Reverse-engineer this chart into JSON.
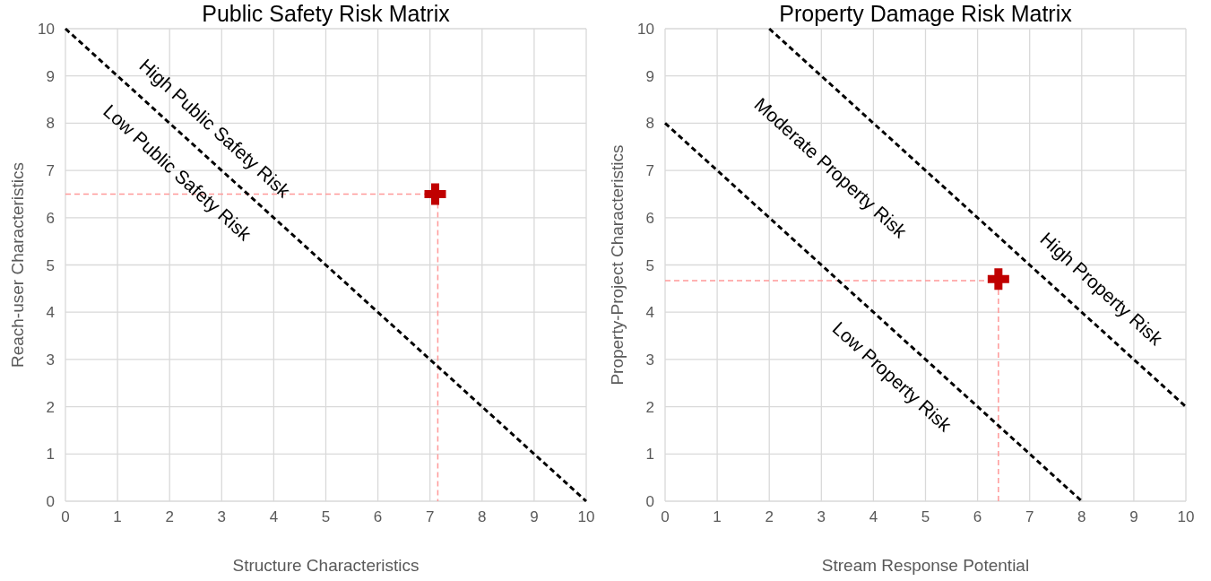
{
  "chart_data": [
    {
      "type": "line",
      "title": "Public Safety Risk Matrix",
      "xlabel": "Structure Characteristics",
      "ylabel": "Reach-user Characteristics",
      "xlim": [
        0,
        10
      ],
      "ylim": [
        0,
        10
      ],
      "xticks": [
        0,
        1,
        2,
        3,
        4,
        5,
        6,
        7,
        8,
        9,
        10
      ],
      "yticks": [
        0,
        1,
        2,
        3,
        4,
        5,
        6,
        7,
        8,
        9,
        10
      ],
      "grid": true,
      "series": [
        {
          "x": [
            0,
            7.15
          ],
          "values": [
            6.5,
            6.5
          ],
          "color": "#ff9999",
          "line_style": "dashed",
          "marker": "none"
        },
        {
          "x": [
            7.15,
            7.15
          ],
          "values": [
            6.5,
            0
          ],
          "color": "#ff9999",
          "line_style": "dashed",
          "marker": "none"
        },
        {
          "x": [
            0,
            10
          ],
          "values": [
            10,
            0
          ],
          "color": "#000000",
          "line_style": "dashed",
          "marker": "none"
        },
        {
          "type": "scatter",
          "x": [
            7.1
          ],
          "values": [
            6.5
          ],
          "color": "#c00000",
          "marker": "cross"
        }
      ],
      "annotations": [
        "High Public Safety Risk",
        "Low Public Safety Risk"
      ]
    },
    {
      "type": "line",
      "title": "Property Damage Risk Matrix",
      "xlabel": "Stream Response Potential",
      "ylabel": "Property-Project Characteristics",
      "xlim": [
        0,
        10
      ],
      "ylim": [
        0,
        10
      ],
      "xticks": [
        0,
        1,
        2,
        3,
        4,
        5,
        6,
        7,
        8,
        9,
        10
      ],
      "yticks": [
        0,
        1,
        2,
        3,
        4,
        5,
        6,
        7,
        8,
        9,
        10
      ],
      "grid": true,
      "series": [
        {
          "x": [
            0,
            6.4
          ],
          "values": [
            4.67,
            4.67
          ],
          "color": "#ff9999",
          "line_style": "dashed",
          "marker": "none"
        },
        {
          "x": [
            6.4,
            6.4
          ],
          "values": [
            4.67,
            0
          ],
          "color": "#ff9999",
          "line_style": "dashed",
          "marker": "none"
        },
        {
          "x": [
            0,
            8
          ],
          "values": [
            8,
            0
          ],
          "color": "#000000",
          "line_style": "dashed",
          "marker": "none"
        },
        {
          "x": [
            2,
            10
          ],
          "values": [
            10,
            2
          ],
          "color": "#000000",
          "line_style": "dashed",
          "marker": "none"
        },
        {
          "type": "scatter",
          "x": [
            6.4
          ],
          "values": [
            4.7
          ],
          "color": "#c00000",
          "marker": "cross"
        }
      ],
      "annotations": [
        "Moderate Property Risk",
        "High Property Risk",
        "Low Property Risk"
      ]
    }
  ]
}
